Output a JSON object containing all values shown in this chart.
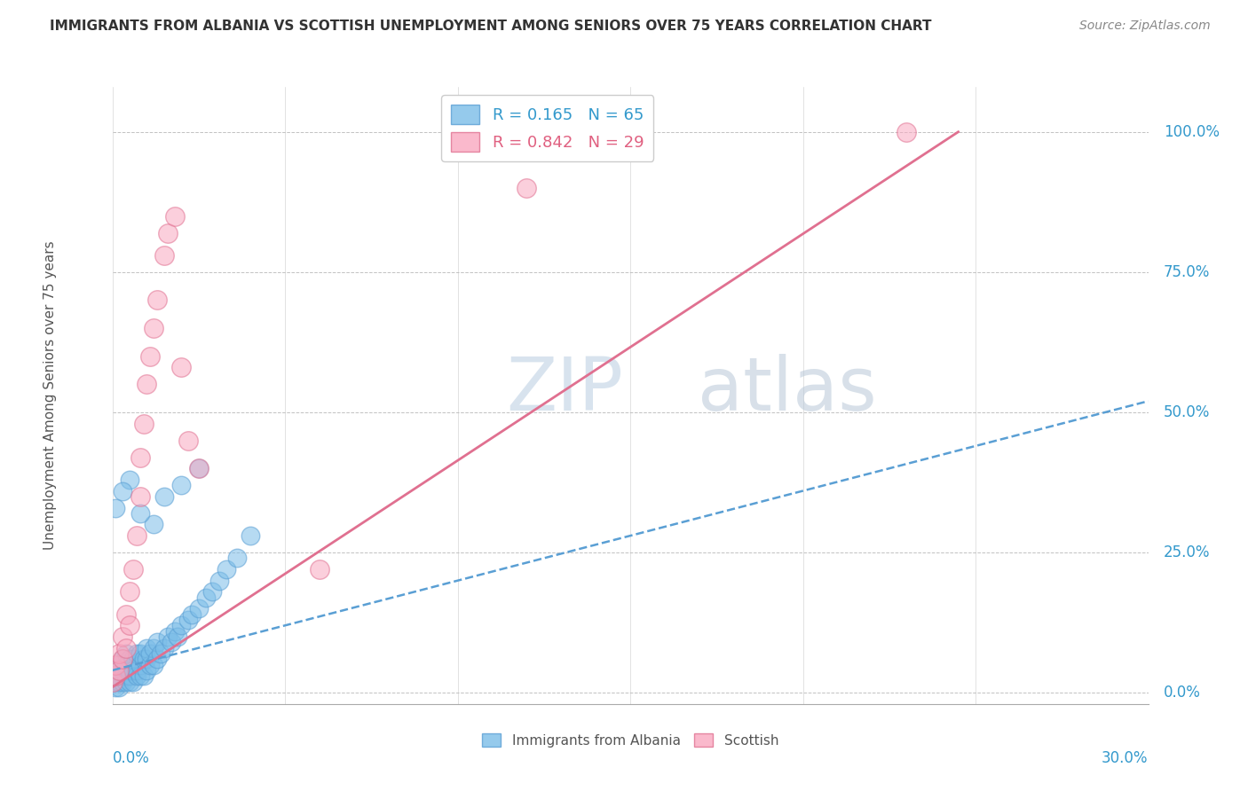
{
  "title": "IMMIGRANTS FROM ALBANIA VS SCOTTISH UNEMPLOYMENT AMONG SENIORS OVER 75 YEARS CORRELATION CHART",
  "source": "Source: ZipAtlas.com",
  "ylabel": "Unemployment Among Seniors over 75 years",
  "right_yticks": [
    "100.0%",
    "75.0%",
    "50.0%",
    "25.0%",
    "0.0%"
  ],
  "right_ytick_vals": [
    1.0,
    0.75,
    0.5,
    0.25,
    0.0
  ],
  "legend_blue_r": "R = 0.165",
  "legend_blue_n": "N = 65",
  "legend_pink_r": "R = 0.842",
  "legend_pink_n": "N = 29",
  "watermark": "ZIPatlas",
  "blue_color": "#7bbde8",
  "blue_edge": "#5a9fd4",
  "pink_color": "#f9a8c0",
  "pink_edge": "#e07090",
  "blue_scatter_x": [
    0.0,
    0.001,
    0.001,
    0.001,
    0.001,
    0.002,
    0.002,
    0.002,
    0.002,
    0.003,
    0.003,
    0.003,
    0.003,
    0.004,
    0.004,
    0.004,
    0.004,
    0.005,
    0.005,
    0.005,
    0.005,
    0.006,
    0.006,
    0.006,
    0.007,
    0.007,
    0.007,
    0.008,
    0.008,
    0.008,
    0.009,
    0.009,
    0.01,
    0.01,
    0.01,
    0.011,
    0.011,
    0.012,
    0.012,
    0.013,
    0.013,
    0.014,
    0.015,
    0.016,
    0.017,
    0.018,
    0.019,
    0.02,
    0.022,
    0.023,
    0.025,
    0.027,
    0.029,
    0.031,
    0.033,
    0.036,
    0.04,
    0.012,
    0.008,
    0.015,
    0.02,
    0.025,
    0.005,
    0.003,
    0.001
  ],
  "blue_scatter_y": [
    0.02,
    0.01,
    0.02,
    0.03,
    0.04,
    0.01,
    0.02,
    0.03,
    0.05,
    0.02,
    0.03,
    0.04,
    0.06,
    0.02,
    0.03,
    0.05,
    0.07,
    0.02,
    0.03,
    0.04,
    0.06,
    0.02,
    0.04,
    0.06,
    0.03,
    0.04,
    0.07,
    0.03,
    0.05,
    0.07,
    0.03,
    0.06,
    0.04,
    0.06,
    0.08,
    0.05,
    0.07,
    0.05,
    0.08,
    0.06,
    0.09,
    0.07,
    0.08,
    0.1,
    0.09,
    0.11,
    0.1,
    0.12,
    0.13,
    0.14,
    0.15,
    0.17,
    0.18,
    0.2,
    0.22,
    0.24,
    0.28,
    0.3,
    0.32,
    0.35,
    0.37,
    0.4,
    0.38,
    0.36,
    0.33
  ],
  "pink_scatter_x": [
    0.0,
    0.001,
    0.001,
    0.002,
    0.002,
    0.003,
    0.003,
    0.004,
    0.004,
    0.005,
    0.005,
    0.006,
    0.007,
    0.008,
    0.008,
    0.009,
    0.01,
    0.011,
    0.012,
    0.013,
    0.015,
    0.016,
    0.018,
    0.02,
    0.022,
    0.025,
    0.06,
    0.12,
    0.23
  ],
  "pink_scatter_y": [
    0.02,
    0.03,
    0.05,
    0.04,
    0.07,
    0.06,
    0.1,
    0.08,
    0.14,
    0.12,
    0.18,
    0.22,
    0.28,
    0.35,
    0.42,
    0.48,
    0.55,
    0.6,
    0.65,
    0.7,
    0.78,
    0.82,
    0.85,
    0.58,
    0.45,
    0.4,
    0.22,
    0.9,
    1.0
  ],
  "xlim": [
    0.0,
    0.3
  ],
  "ylim": [
    -0.02,
    1.08
  ],
  "blue_trend_x": [
    0.0,
    0.3
  ],
  "blue_trend_y": [
    0.04,
    0.52
  ],
  "pink_trend_x": [
    0.0,
    0.245
  ],
  "pink_trend_y": [
    0.01,
    1.0
  ]
}
